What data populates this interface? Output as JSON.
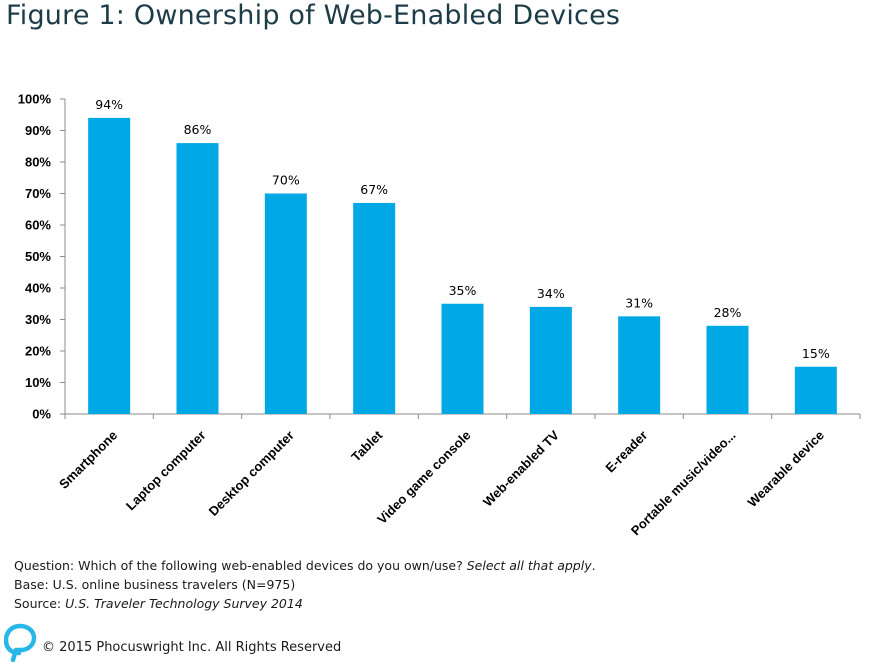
{
  "title": "Figure 1: Ownership of Web-Enabled Devices",
  "colors": {
    "bar": "#00a8e6",
    "title": "#1d3c48",
    "axis": "#8c8c8c",
    "logo": "#29b6e8"
  },
  "chart_data": {
    "type": "bar",
    "categories": [
      "Smartphone",
      "Laptop computer",
      "Desktop computer",
      "Tablet",
      "Video game console",
      "Web-enabled TV",
      "E-reader",
      "Portable music/video...",
      "Wearable device"
    ],
    "values": [
      94,
      86,
      70,
      67,
      35,
      34,
      31,
      28,
      15
    ],
    "data_labels": [
      "94%",
      "86%",
      "70%",
      "67%",
      "35%",
      "34%",
      "31%",
      "28%",
      "15%"
    ],
    "yticks": [
      "0%",
      "10%",
      "20%",
      "30%",
      "40%",
      "50%",
      "60%",
      "70%",
      "80%",
      "90%",
      "100%"
    ],
    "ylim": [
      0,
      100
    ],
    "grid": false,
    "legend": "none"
  },
  "notes": {
    "question_prefix": "Question: Which of the following web-enabled devices do you own/use? ",
    "question_italic": "Select all that apply",
    "question_suffix": ".",
    "base": "Base: U.S. online business travelers (N=975)",
    "source_prefix": "Source: ",
    "source_italic": "U.S. Traveler Technology Survey 2014"
  },
  "footer": {
    "copyright": "© 2015 Phocuswright Inc. All Rights Reserved",
    "logo_icon": "phocuswright-logo-icon"
  }
}
